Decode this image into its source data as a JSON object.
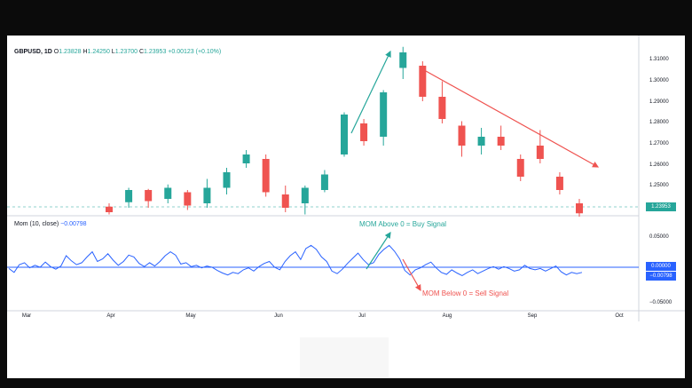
{
  "header": {
    "symbol": "GBPUSD, 1D",
    "o_label": "O",
    "o_value": "1.23828",
    "h_label": "H",
    "h_value": "1.24250",
    "l_label": "L",
    "l_value": "1.23700",
    "c_label": "C",
    "c_value": "1.23953",
    "change": "+0.00123 (+0.10%)"
  },
  "indicator": {
    "label": "Mom (10, close)",
    "value": "−0.00798"
  },
  "annotations": {
    "buy": "MOM Above 0 = Buy Signal",
    "sell": "MOM Below 0 = Sell Signal"
  },
  "colors": {
    "up": "#26a69a",
    "down": "#ef5350",
    "momentum": "#2962ff",
    "trend_arrow": "#ef5350",
    "signal_arrow": "#26a69a"
  },
  "price_axis": {
    "ticks": [
      "1.31000",
      "1.30000",
      "1.29000",
      "1.28000",
      "1.27000",
      "1.26000",
      "1.25000"
    ],
    "current": "1.23953"
  },
  "mom_axis": {
    "ticks": [
      "0.05000",
      "−0.05000"
    ],
    "zero": "0.00000",
    "current": "−0.00798"
  },
  "x_axis": {
    "months": [
      "Mar",
      "Apr",
      "May",
      "Jun",
      "Jul",
      "Aug",
      "Sep",
      "Oct"
    ]
  },
  "chart_data": [
    {
      "type": "candlestick",
      "title": "GBPUSD, 1D",
      "ylim": [
        1.238,
        1.314
      ],
      "x": [
        "Apr",
        "May",
        "Jun",
        "Jul",
        "Aug",
        "Sep"
      ],
      "candles": [
        {
          "t": "Apr-01",
          "o": 1.2425,
          "h": 1.244,
          "l": 1.239,
          "c": 1.24
        },
        {
          "t": "Apr-07",
          "o": 1.2445,
          "h": 1.251,
          "l": 1.242,
          "c": 1.25
        },
        {
          "t": "Apr-14",
          "o": 1.25,
          "h": 1.2505,
          "l": 1.242,
          "c": 1.245
        },
        {
          "t": "Apr-21",
          "o": 1.246,
          "h": 1.2525,
          "l": 1.244,
          "c": 1.251
        },
        {
          "t": "Apr-28",
          "o": 1.249,
          "h": 1.25,
          "l": 1.241,
          "c": 1.243
        },
        {
          "t": "May-05",
          "o": 1.244,
          "h": 1.255,
          "l": 1.242,
          "c": 1.251
        },
        {
          "t": "May-12",
          "o": 1.251,
          "h": 1.26,
          "l": 1.248,
          "c": 1.258
        },
        {
          "t": "May-19",
          "o": 1.262,
          "h": 1.268,
          "l": 1.26,
          "c": 1.266
        },
        {
          "t": "May-26",
          "o": 1.264,
          "h": 1.266,
          "l": 1.247,
          "c": 1.249
        },
        {
          "t": "Jun-02",
          "o": 1.248,
          "h": 1.252,
          "l": 1.24,
          "c": 1.242
        },
        {
          "t": "Jun-09",
          "o": 1.244,
          "h": 1.252,
          "l": 1.239,
          "c": 1.251
        },
        {
          "t": "Jun-16",
          "o": 1.25,
          "h": 1.259,
          "l": 1.249,
          "c": 1.257
        },
        {
          "t": "Jun-23",
          "o": 1.266,
          "h": 1.285,
          "l": 1.265,
          "c": 1.284
        },
        {
          "t": "Jun-30",
          "o": 1.28,
          "h": 1.282,
          "l": 1.27,
          "c": 1.272
        },
        {
          "t": "Jul-07",
          "o": 1.274,
          "h": 1.295,
          "l": 1.27,
          "c": 1.294
        },
        {
          "t": "Jul-14",
          "o": 1.305,
          "h": 1.3145,
          "l": 1.3,
          "c": 1.312
        },
        {
          "t": "Jul-21",
          "o": 1.306,
          "h": 1.308,
          "l": 1.29,
          "c": 1.292
        },
        {
          "t": "Jul-28",
          "o": 1.292,
          "h": 1.299,
          "l": 1.28,
          "c": 1.282
        },
        {
          "t": "Aug-04",
          "o": 1.279,
          "h": 1.281,
          "l": 1.265,
          "c": 1.27
        },
        {
          "t": "Aug-11",
          "o": 1.27,
          "h": 1.278,
          "l": 1.266,
          "c": 1.274
        },
        {
          "t": "Aug-18",
          "o": 1.274,
          "h": 1.279,
          "l": 1.268,
          "c": 1.27
        },
        {
          "t": "Aug-25",
          "o": 1.264,
          "h": 1.266,
          "l": 1.254,
          "c": 1.256
        },
        {
          "t": "Sep-01",
          "o": 1.27,
          "h": 1.277,
          "l": 1.262,
          "c": 1.264
        },
        {
          "t": "Sep-08",
          "o": 1.256,
          "h": 1.258,
          "l": 1.248,
          "c": 1.25
        },
        {
          "t": "Sep-15",
          "o": 1.244,
          "h": 1.246,
          "l": 1.238,
          "c": 1.2395
        }
      ]
    },
    {
      "type": "line",
      "title": "Mom (10, close)",
      "ylim": [
        -0.065,
        0.065
      ],
      "series": [
        {
          "name": "Mom (10, close)",
          "values": [
            -0.002,
            -0.008,
            0.004,
            0.007,
            -0.001,
            0.003,
            0.0,
            0.008,
            0.001,
            -0.003,
            0.002,
            0.018,
            0.01,
            0.004,
            0.007,
            0.016,
            0.024,
            0.009,
            0.013,
            0.021,
            0.011,
            0.003,
            0.009,
            0.019,
            0.016,
            0.006,
            0.001,
            0.007,
            0.002,
            0.009,
            0.018,
            0.024,
            0.019,
            0.005,
            0.007,
            0.001,
            0.003,
            -0.001,
            0.002,
            0.0,
            -0.005,
            -0.009,
            -0.012,
            -0.008,
            -0.01,
            -0.004,
            -0.001,
            -0.006,
            0.001,
            0.006,
            0.009,
            0.0,
            -0.004,
            0.009,
            0.018,
            0.024,
            0.012,
            0.029,
            0.034,
            0.028,
            0.016,
            0.009,
            -0.006,
            -0.01,
            -0.003,
            0.006,
            0.014,
            0.022,
            0.012,
            0.004,
            0.007,
            0.02,
            0.028,
            0.034,
            0.025,
            0.013,
            -0.005,
            -0.012,
            -0.004,
            -0.001,
            0.004,
            0.008,
            -0.001,
            -0.008,
            -0.011,
            -0.004,
            -0.009,
            -0.013,
            -0.008,
            -0.004,
            -0.01,
            -0.006,
            -0.002,
            0.001,
            -0.003,
            0.001,
            -0.002,
            -0.006,
            -0.004,
            0.003,
            -0.002,
            -0.004,
            -0.002,
            -0.006,
            -0.002,
            0.002,
            -0.007,
            -0.012,
            -0.008,
            -0.01,
            -0.008
          ]
        }
      ]
    }
  ]
}
